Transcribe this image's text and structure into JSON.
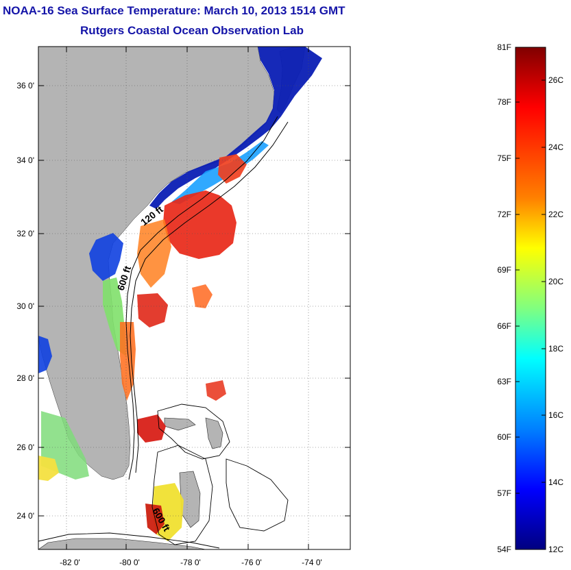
{
  "header": {
    "title": "NOAA-16 Sea Surface Temperature:  March 10, 2013 1514 GMT",
    "subtitle": "Rutgers Coastal Ocean Observation Lab"
  },
  "map": {
    "lat_labels": [
      "36 0'",
      "34 0'",
      "32 0'",
      "30 0'",
      "28 0'",
      "26 0'",
      "24 0'"
    ],
    "lon_labels": [
      "-82 0'",
      "-80 0'",
      "-78 0'",
      "-76 0'",
      "-74 0'"
    ],
    "contour_labels": [
      "120 ft",
      "600 ft",
      "600 ft"
    ],
    "land_color": "#b4b4b4"
  },
  "colorbar": {
    "fahrenheit_labels": [
      "81F",
      "78F",
      "75F",
      "72F",
      "69F",
      "66F",
      "63F",
      "60F",
      "57F",
      "54F"
    ],
    "celsius_labels": [
      "26C",
      "24C",
      "22C",
      "20C",
      "18C",
      "16C",
      "14C",
      "12C"
    ],
    "stops": [
      "#800000",
      "#ff0000",
      "#ff8000",
      "#ffff00",
      "#80ff80",
      "#00ffff",
      "#0080ff",
      "#0000ff",
      "#000080"
    ]
  }
}
